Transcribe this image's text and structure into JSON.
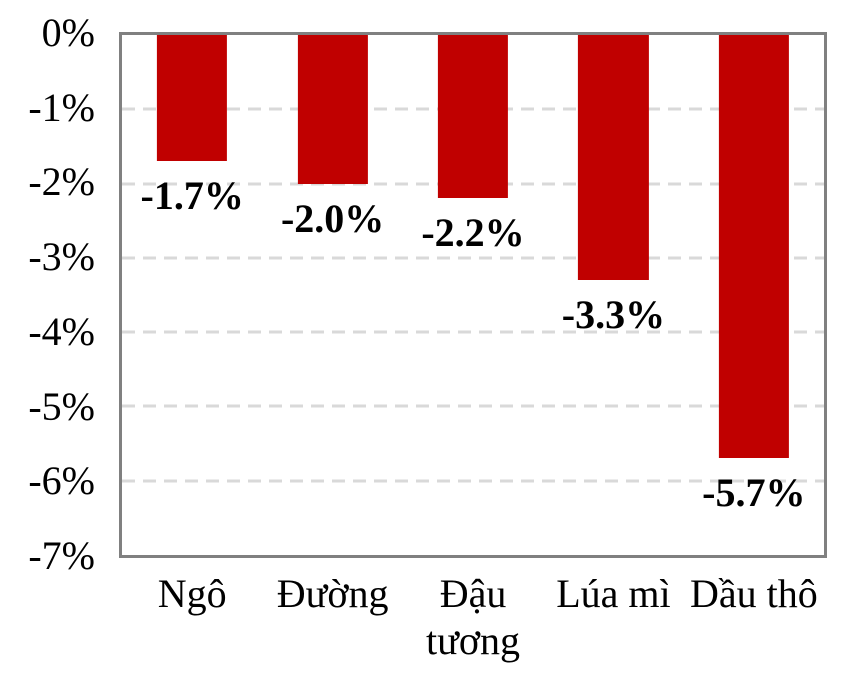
{
  "chart_data": {
    "type": "bar",
    "title": "",
    "xlabel": "",
    "ylabel": "",
    "categories": [
      "Ngô",
      "Đường",
      "Đậu tương",
      "Lúa mì",
      "Dầu thô"
    ],
    "values": [
      -1.7,
      -2.0,
      -2.2,
      -3.3,
      -5.7
    ],
    "data_labels": [
      "-1.7%",
      "-2.0%",
      "-2.2%",
      "-3.3%",
      "-5.7%"
    ],
    "y_ticks": [
      "0%",
      "-1%",
      "-2%",
      "-3%",
      "-4%",
      "-5%",
      "-6%",
      "-7%"
    ],
    "ylim": [
      -7,
      0
    ],
    "grid": "horizontal-dashed",
    "legend_position": "none",
    "colors": {
      "bar": "#C00000",
      "gridline": "#D9D9D9",
      "plot_border": "#808080",
      "text": "#000000",
      "background": "#FFFFFF"
    }
  }
}
